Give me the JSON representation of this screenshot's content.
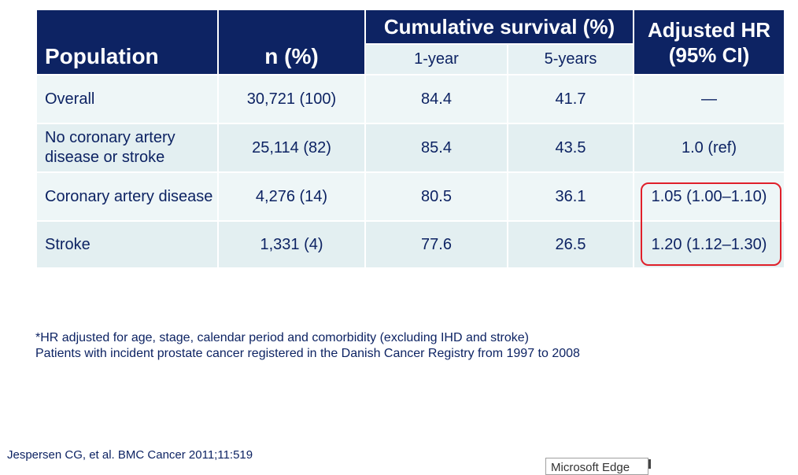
{
  "table": {
    "headers": {
      "population": "Population",
      "n": "n (%)",
      "cumulative_survival": "Cumulative survival (%)",
      "one_year": "1-year",
      "five_years": "5-years",
      "adjusted_hr_line1": "Adjusted HR",
      "adjusted_hr_line2": "(95% CI)"
    },
    "rows": [
      {
        "population": "Overall",
        "n": "30,721 (100)",
        "one_year": "84.4",
        "five_years": "41.7",
        "hr": "—"
      },
      {
        "population": "No coronary artery disease or stroke",
        "n": "25,114 (82)",
        "one_year": "85.4",
        "five_years": "43.5",
        "hr": "1.0 (ref)"
      },
      {
        "population": "Coronary artery disease",
        "n": "4,276 (14)",
        "one_year": "80.5",
        "five_years": "36.1",
        "hr": "1.05 (1.00–1.10)"
      },
      {
        "population": "Stroke",
        "n": "1,331 (4)",
        "one_year": "77.6",
        "five_years": "26.5",
        "hr": "1.20 (1.12–1.30)"
      }
    ]
  },
  "footnote": {
    "line1": "*HR adjusted for age, stage, calendar period and comorbidity (excluding IHD and stroke)",
    "line2": "Patients with incident prostate cancer registered in the Danish Cancer Registry from 1997 to 2008"
  },
  "citation": "Jespersen CG, et al. BMC Cancer 2011;11:519",
  "tooltip": "Microsoft Edge",
  "colors": {
    "header_bg": "#0d2363",
    "text": "#0d2363",
    "highlight": "#e0202a"
  }
}
